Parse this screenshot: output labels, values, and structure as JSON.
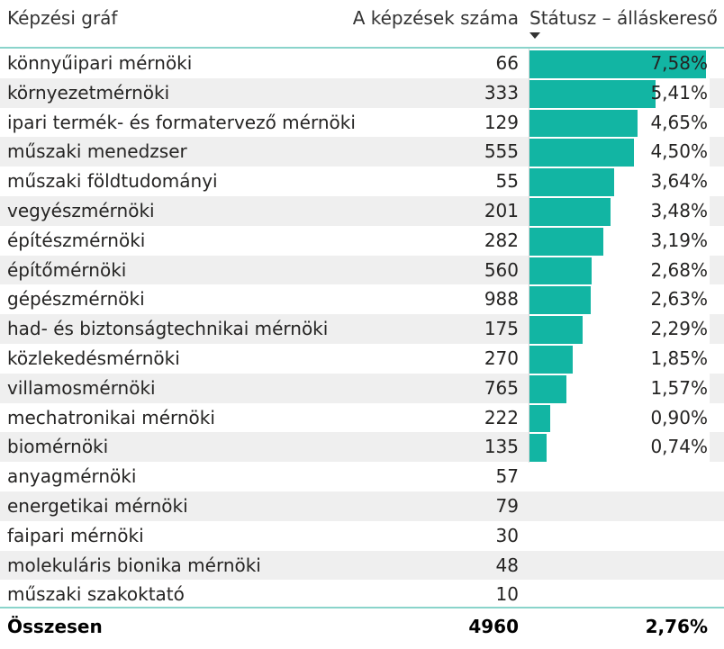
{
  "header": {
    "col_name": "Képzési gráf",
    "col_count": "A képzések száma",
    "col_status": "Státusz – álláskereső"
  },
  "chart_data": {
    "type": "table",
    "columns": [
      "Képzési gráf",
      "A képzések száma",
      "Státusz – álláskereső"
    ],
    "bar_max": 7.58,
    "rows": [
      {
        "name": "könnyűipari mérnöki",
        "count": "66",
        "pct_label": "7,58%",
        "pct": 7.58
      },
      {
        "name": "környezetmérnöki",
        "count": "333",
        "pct_label": "5,41%",
        "pct": 5.41
      },
      {
        "name": "ipari termék- és formatervező mérnöki",
        "count": "129",
        "pct_label": "4,65%",
        "pct": 4.65
      },
      {
        "name": "műszaki menedzser",
        "count": "555",
        "pct_label": "4,50%",
        "pct": 4.5
      },
      {
        "name": "műszaki földtudományi",
        "count": "55",
        "pct_label": "3,64%",
        "pct": 3.64
      },
      {
        "name": "vegyészmérnöki",
        "count": "201",
        "pct_label": "3,48%",
        "pct": 3.48
      },
      {
        "name": "építészmérnöki",
        "count": "282",
        "pct_label": "3,19%",
        "pct": 3.19
      },
      {
        "name": "építőmérnöki",
        "count": "560",
        "pct_label": "2,68%",
        "pct": 2.68
      },
      {
        "name": "gépészmérnöki",
        "count": "988",
        "pct_label": "2,63%",
        "pct": 2.63
      },
      {
        "name": "had- és biztonságtechnikai mérnöki",
        "count": "175",
        "pct_label": "2,29%",
        "pct": 2.29
      },
      {
        "name": "közlekedésmérnöki",
        "count": "270",
        "pct_label": "1,85%",
        "pct": 1.85
      },
      {
        "name": "villamosmérnöki",
        "count": "765",
        "pct_label": "1,57%",
        "pct": 1.57
      },
      {
        "name": "mechatronikai mérnöki",
        "count": "222",
        "pct_label": "0,90%",
        "pct": 0.9
      },
      {
        "name": "biomérnöki",
        "count": "135",
        "pct_label": "0,74%",
        "pct": 0.74
      },
      {
        "name": "anyagmérnöki",
        "count": "57",
        "pct_label": "",
        "pct": null
      },
      {
        "name": "energetikai mérnöki",
        "count": "79",
        "pct_label": "",
        "pct": null
      },
      {
        "name": "faipari mérnöki",
        "count": "30",
        "pct_label": "",
        "pct": null
      },
      {
        "name": "molekuláris bionika mérnöki",
        "count": "48",
        "pct_label": "",
        "pct": null
      },
      {
        "name": "műszaki szakoktató",
        "count": "10",
        "pct_label": "",
        "pct": null
      }
    ],
    "bar_color": "#12b5a3",
    "accent_color": "#8ad4cb"
  },
  "total": {
    "label": "Összesen",
    "count": "4960",
    "pct_label": "2,76%"
  },
  "icons": {
    "sort": "sort-descending-icon"
  }
}
